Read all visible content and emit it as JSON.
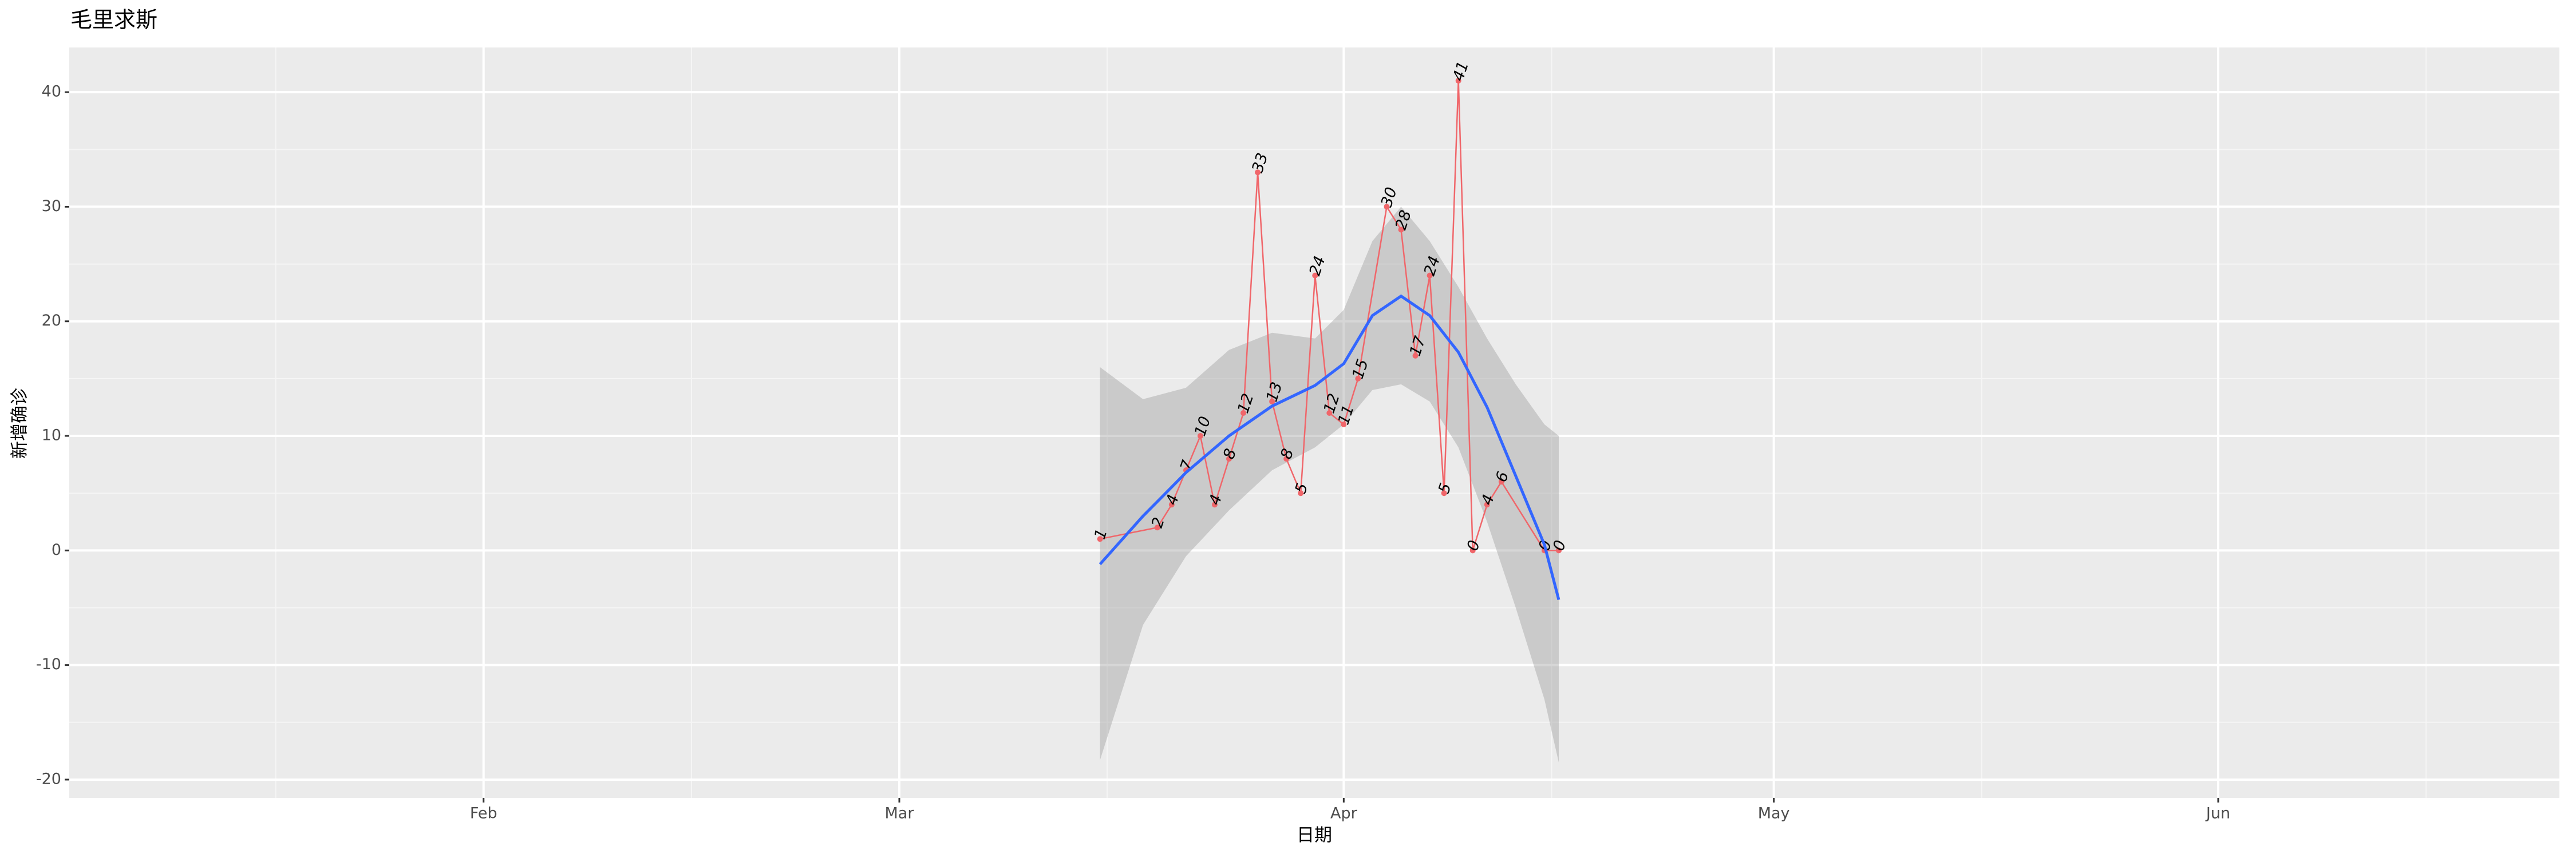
{
  "chart_data": {
    "type": "line",
    "title": "毛里求斯",
    "xlabel": "日期",
    "ylabel": "新增确诊",
    "x": [
      75,
      79,
      80,
      81,
      82,
      83,
      84,
      85,
      86,
      87,
      88,
      89,
      90,
      91,
      92,
      93,
      95,
      96,
      97,
      98,
      99,
      100,
      101,
      102,
      103,
      106,
      107
    ],
    "values": [
      1,
      2,
      4,
      7,
      10,
      4,
      8,
      12,
      33,
      13,
      8,
      5,
      24,
      12,
      11,
      15,
      30,
      28,
      17,
      24,
      5,
      41,
      0,
      4,
      6,
      0,
      0
    ],
    "color": "#f0666a",
    "smooth": {
      "color": "#3366ff",
      "band_color": "#999999",
      "x": [
        75,
        78,
        81,
        84,
        87,
        90,
        92,
        94,
        96,
        98,
        100,
        102,
        104,
        106,
        107
      ],
      "values": [
        -1.2,
        3.0,
        6.8,
        10.0,
        12.6,
        14.4,
        16.3,
        20.5,
        22.2,
        20.5,
        17.3,
        12.5,
        6.5,
        0.5,
        -4.3
      ],
      "lower": [
        -18.3,
        -6.5,
        -0.5,
        3.5,
        7.0,
        9.0,
        11.0,
        14.0,
        14.5,
        13.0,
        9.0,
        2.5,
        -5.0,
        -13.0,
        -18.5
      ],
      "upper": [
        16.0,
        13.2,
        14.2,
        17.5,
        19.0,
        18.5,
        21.0,
        27.0,
        30.0,
        27.0,
        23.0,
        18.5,
        14.5,
        11.0,
        10.0
      ]
    },
    "xlim": [
      3.1,
      176.8
    ],
    "xticks": [
      {
        "value": 32,
        "label": "Feb"
      },
      {
        "value": 61,
        "label": "Mar"
      },
      {
        "value": 92,
        "label": "Apr"
      },
      {
        "value": 122,
        "label": "May"
      },
      {
        "value": 153,
        "label": "Jun"
      }
    ],
    "ylim": [
      -21.6,
      43.9
    ],
    "yticks": [
      -20,
      -10,
      0,
      10,
      20,
      30,
      40
    ],
    "grid": true
  }
}
